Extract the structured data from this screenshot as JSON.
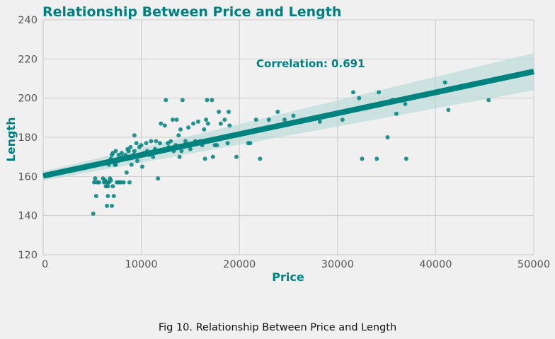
{
  "chart_data": {
    "type": "scatter",
    "title": "Relationship Between Price and Length",
    "xlabel": "Price",
    "ylabel": "Length",
    "xlim": [
      0,
      50000
    ],
    "ylim": [
      120,
      240
    ],
    "xticks": [
      0,
      10000,
      20000,
      30000,
      40000,
      50000
    ],
    "yticks": [
      120,
      140,
      160,
      180,
      200,
      220,
      240
    ],
    "grid": true,
    "annotation": "Correlation: 0.691",
    "regression": {
      "x": [
        0,
        50000
      ],
      "y": [
        160.3,
        213.6
      ],
      "ci_lower": [
        157.8,
        204.0
      ],
      "ci_upper": [
        162.6,
        223.0
      ]
    },
    "points": [
      [
        5100,
        141
      ],
      [
        5200,
        157
      ],
      [
        5300,
        159
      ],
      [
        5400,
        150
      ],
      [
        5500,
        157
      ],
      [
        5600,
        166
      ],
      [
        5700,
        157
      ],
      [
        6100,
        159
      ],
      [
        6200,
        157
      ],
      [
        6300,
        158
      ],
      [
        6400,
        155
      ],
      [
        6500,
        145
      ],
      [
        6600,
        150
      ],
      [
        6700,
        157
      ],
      [
        6800,
        159
      ],
      [
        6900,
        158
      ],
      [
        6500,
        157
      ],
      [
        6600,
        155
      ],
      [
        6700,
        166
      ],
      [
        6800,
        168
      ],
      [
        6900,
        169
      ],
      [
        7000,
        145
      ],
      [
        7000,
        171
      ],
      [
        7100,
        155
      ],
      [
        7200,
        150
      ],
      [
        7300,
        166
      ],
      [
        7400,
        173
      ],
      [
        7500,
        157
      ],
      [
        7600,
        168
      ],
      [
        7700,
        171
      ],
      [
        7800,
        169
      ],
      [
        7900,
        157
      ],
      [
        7100,
        172
      ],
      [
        7400,
        166
      ],
      [
        7700,
        157
      ],
      [
        8000,
        172
      ],
      [
        8100,
        170
      ],
      [
        8200,
        157
      ],
      [
        8300,
        169
      ],
      [
        8400,
        171
      ],
      [
        8500,
        162
      ],
      [
        8600,
        174
      ],
      [
        8700,
        173
      ],
      [
        8800,
        157
      ],
      [
        8900,
        175
      ],
      [
        9000,
        166
      ],
      [
        9200,
        171
      ],
      [
        9300,
        173
      ],
      [
        9500,
        177
      ],
      [
        9300,
        181
      ],
      [
        9600,
        168
      ],
      [
        9800,
        175
      ],
      [
        10000,
        176
      ],
      [
        10100,
        165
      ],
      [
        10300,
        172
      ],
      [
        10500,
        177
      ],
      [
        10600,
        173
      ],
      [
        10800,
        171
      ],
      [
        11000,
        178
      ],
      [
        11200,
        170
      ],
      [
        11400,
        174
      ],
      [
        11500,
        178
      ],
      [
        11700,
        159
      ],
      [
        11900,
        177
      ],
      [
        12000,
        187
      ],
      [
        12200,
        173
      ],
      [
        12400,
        186
      ],
      [
        12500,
        199
      ],
      [
        12700,
        177
      ],
      [
        12800,
        175
      ],
      [
        13000,
        178
      ],
      [
        13200,
        189
      ],
      [
        13300,
        173
      ],
      [
        13500,
        176
      ],
      [
        13600,
        189
      ],
      [
        13800,
        181
      ],
      [
        13900,
        170
      ],
      [
        14000,
        184
      ],
      [
        14100,
        173
      ],
      [
        14200,
        199
      ],
      [
        14500,
        178
      ],
      [
        14800,
        185
      ],
      [
        15000,
        174
      ],
      [
        15300,
        187
      ],
      [
        15500,
        178
      ],
      [
        15800,
        188
      ],
      [
        16000,
        178
      ],
      [
        16200,
        176
      ],
      [
        16400,
        184
      ],
      [
        16500,
        169
      ],
      [
        16600,
        189
      ],
      [
        16700,
        199
      ],
      [
        16800,
        187
      ],
      [
        17000,
        178
      ],
      [
        17200,
        199
      ],
      [
        17300,
        170
      ],
      [
        17500,
        176
      ],
      [
        17700,
        176
      ],
      [
        17900,
        193
      ],
      [
        18100,
        187
      ],
      [
        18300,
        180
      ],
      [
        18500,
        189
      ],
      [
        18800,
        177
      ],
      [
        18900,
        193
      ],
      [
        19000,
        186
      ],
      [
        19700,
        170
      ],
      [
        20900,
        177
      ],
      [
        21100,
        177
      ],
      [
        21700,
        189
      ],
      [
        22100,
        169
      ],
      [
        23000,
        189
      ],
      [
        23900,
        193
      ],
      [
        24600,
        189
      ],
      [
        25500,
        191
      ],
      [
        28200,
        188
      ],
      [
        30500,
        189
      ],
      [
        31600,
        203
      ],
      [
        32200,
        200
      ],
      [
        32500,
        169
      ],
      [
        34000,
        169
      ],
      [
        34200,
        203
      ],
      [
        35100,
        180
      ],
      [
        35600,
        199
      ],
      [
        36000,
        192
      ],
      [
        36900,
        197
      ],
      [
        37000,
        169
      ],
      [
        40960,
        208
      ],
      [
        41300,
        194
      ],
      [
        45400,
        199
      ]
    ]
  },
  "caption": "Fig 10. Relationship Between Price and Length",
  "colors": {
    "accent": "#00827f",
    "title": "#008080",
    "band": "#b2d8d6",
    "grid": "#cbcbcb",
    "tick": "#555555"
  }
}
